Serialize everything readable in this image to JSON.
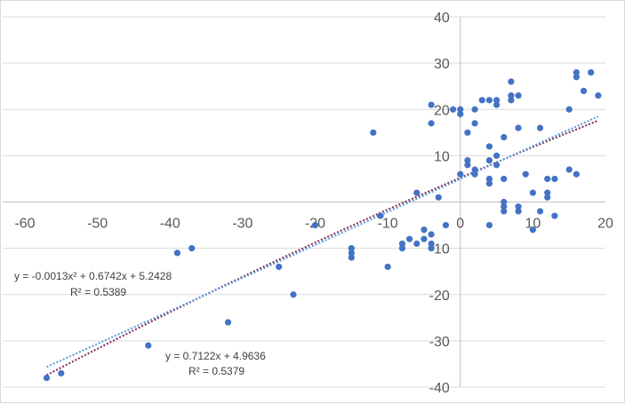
{
  "chart_data": {
    "type": "scatter",
    "xlim": [
      -60,
      20
    ],
    "ylim": [
      -40,
      40
    ],
    "x_ticks": [
      -60,
      -50,
      -40,
      -30,
      -20,
      -10,
      0,
      10,
      20
    ],
    "y_ticks": [
      -40,
      -30,
      -20,
      -10,
      0,
      10,
      20,
      30,
      40
    ],
    "x_tick_labels": [
      "-60",
      "-50",
      "-40",
      "-30",
      "-20",
      "-10",
      "0",
      "10",
      "20"
    ],
    "y_tick_labels": [
      "-40",
      "-30",
      "-20",
      "-10",
      "",
      "10",
      "20",
      "30",
      "40"
    ],
    "grid": "horizontal",
    "point_color": "#4472c4",
    "points": [
      [
        -57,
        -38
      ],
      [
        -55,
        -37
      ],
      [
        -43,
        -31
      ],
      [
        -39,
        -11
      ],
      [
        -37,
        -10
      ],
      [
        -32,
        -26
      ],
      [
        -25,
        -14
      ],
      [
        -23,
        -20
      ],
      [
        -20,
        -5
      ],
      [
        -15,
        -10
      ],
      [
        -15,
        -11
      ],
      [
        -15,
        -12
      ],
      [
        -12,
        15
      ],
      [
        -11,
        -3
      ],
      [
        -10,
        -14
      ],
      [
        -8,
        -9
      ],
      [
        -8,
        -10
      ],
      [
        -7,
        -8
      ],
      [
        -6,
        -9
      ],
      [
        -6,
        2
      ],
      [
        -5,
        -6
      ],
      [
        -5,
        -8
      ],
      [
        -4,
        -7
      ],
      [
        -4,
        -9
      ],
      [
        -4,
        -10
      ],
      [
        -4,
        17
      ],
      [
        -4,
        21
      ],
      [
        -3,
        1
      ],
      [
        -2,
        -5
      ],
      [
        -1,
        20
      ],
      [
        0,
        20
      ],
      [
        0,
        19
      ],
      [
        0,
        6
      ],
      [
        1,
        15
      ],
      [
        1,
        9
      ],
      [
        1,
        8
      ],
      [
        2,
        20
      ],
      [
        2,
        17
      ],
      [
        2,
        7
      ],
      [
        2,
        6
      ],
      [
        3,
        22
      ],
      [
        4,
        22
      ],
      [
        4,
        12
      ],
      [
        4,
        9
      ],
      [
        4,
        5
      ],
      [
        4,
        4
      ],
      [
        4,
        -5
      ],
      [
        5,
        22
      ],
      [
        5,
        21
      ],
      [
        5,
        10
      ],
      [
        5,
        8
      ],
      [
        6,
        14
      ],
      [
        6,
        5
      ],
      [
        6,
        0
      ],
      [
        6,
        -1
      ],
      [
        6,
        -2
      ],
      [
        7,
        26
      ],
      [
        7,
        23
      ],
      [
        7,
        22
      ],
      [
        8,
        23
      ],
      [
        8,
        16
      ],
      [
        8,
        -1
      ],
      [
        8,
        -2
      ],
      [
        9,
        6
      ],
      [
        10,
        2
      ],
      [
        10,
        -6
      ],
      [
        11,
        16
      ],
      [
        11,
        -2
      ],
      [
        12,
        5
      ],
      [
        12,
        2
      ],
      [
        12,
        1
      ],
      [
        13,
        5
      ],
      [
        13,
        -3
      ],
      [
        15,
        20
      ],
      [
        15,
        7
      ],
      [
        16,
        28
      ],
      [
        16,
        27
      ],
      [
        16,
        6
      ],
      [
        17,
        24
      ],
      [
        18,
        28
      ],
      [
        19,
        23
      ]
    ],
    "trendlines": [
      {
        "kind": "polynomial",
        "coefficients": [
          -0.0013,
          0.6742,
          5.2428
        ],
        "x_range": [
          -57,
          19
        ],
        "color": "#7b2b52",
        "equation": "y = -0.0013x² + 0.6742x + 5.2428",
        "r_squared": "R² = 0.5389"
      },
      {
        "kind": "linear",
        "coefficients": [
          0.7122,
          4.9636
        ],
        "x_range": [
          -57,
          19
        ],
        "color": "#5b9bd5",
        "equation": "y = 0.7122x + 4.9636",
        "r_squared": "R² = 0.5379"
      }
    ]
  }
}
